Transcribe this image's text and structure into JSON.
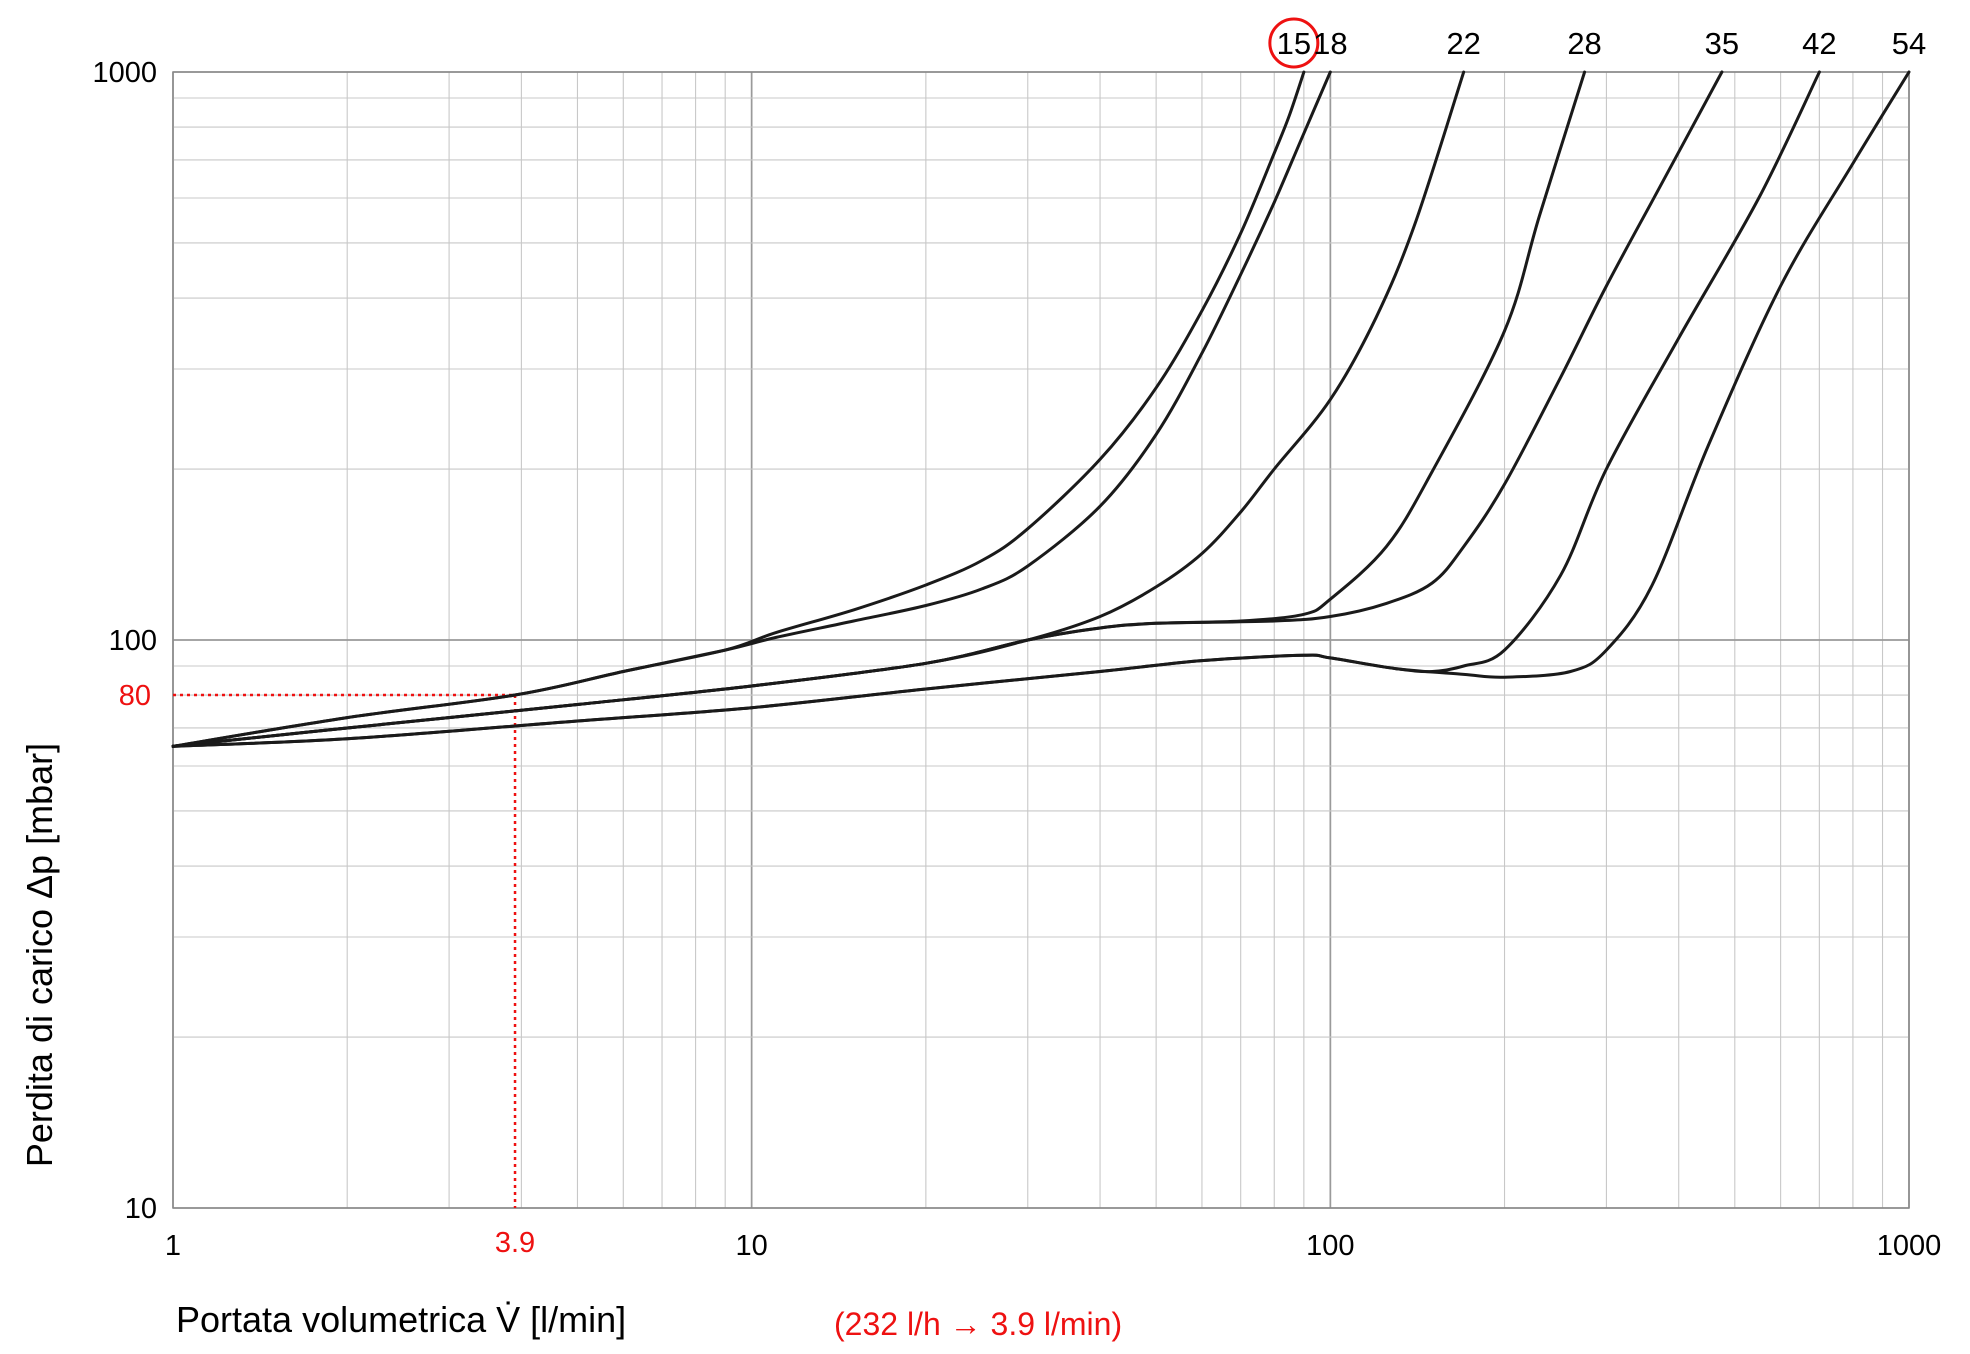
{
  "chart_data": {
    "type": "line",
    "x_scale": "log",
    "y_scale": "log",
    "xlim": [
      1,
      1000
    ],
    "ylim": [
      10,
      1000
    ],
    "grid": true,
    "xlabel": "Portata volumetrica V̇ [l/min]",
    "ylabel": "Perdita di carico Δp [mbar]",
    "x_ticks": [
      "1",
      "10",
      "100",
      "1000"
    ],
    "y_ticks": [
      "10",
      "100",
      "1000"
    ],
    "series": [
      {
        "name": "15",
        "highlighted": true,
        "points": [
          [
            1,
            65
          ],
          [
            2,
            73
          ],
          [
            3.9,
            80
          ],
          [
            6,
            88
          ],
          [
            9,
            96
          ],
          [
            11,
            103
          ],
          [
            15,
            113
          ],
          [
            20,
            125
          ],
          [
            25,
            138
          ],
          [
            30,
            157
          ],
          [
            40,
            208
          ],
          [
            50,
            278
          ],
          [
            60,
            380
          ],
          [
            70,
            520
          ],
          [
            80,
            720
          ],
          [
            85,
            840
          ],
          [
            90,
            1000
          ]
        ]
      },
      {
        "name": "18",
        "points": [
          [
            1,
            65
          ],
          [
            2,
            73
          ],
          [
            3.9,
            80
          ],
          [
            6,
            88
          ],
          [
            9,
            96
          ],
          [
            11,
            101
          ],
          [
            15,
            108
          ],
          [
            20,
            115
          ],
          [
            25,
            123
          ],
          [
            30,
            135
          ],
          [
            40,
            172
          ],
          [
            50,
            230
          ],
          [
            60,
            320
          ],
          [
            70,
            440
          ],
          [
            80,
            590
          ],
          [
            90,
            780
          ],
          [
            100,
            1000
          ]
        ]
      },
      {
        "name": "22",
        "points": [
          [
            1,
            65
          ],
          [
            2,
            70
          ],
          [
            5,
            77
          ],
          [
            10,
            83
          ],
          [
            20,
            91
          ],
          [
            30,
            100
          ],
          [
            40,
            110
          ],
          [
            50,
            124
          ],
          [
            60,
            142
          ],
          [
            70,
            168
          ],
          [
            80,
            200
          ],
          [
            100,
            265
          ],
          [
            120,
            370
          ],
          [
            140,
            540
          ],
          [
            170,
            1000
          ]
        ]
      },
      {
        "name": "28",
        "points": [
          [
            1,
            65
          ],
          [
            2,
            70
          ],
          [
            5,
            77
          ],
          [
            10,
            83
          ],
          [
            20,
            91
          ],
          [
            30,
            100
          ],
          [
            40,
            105
          ],
          [
            50,
            107
          ],
          [
            70,
            108
          ],
          [
            90,
            111
          ],
          [
            100,
            118
          ],
          [
            125,
            146
          ],
          [
            150,
            198
          ],
          [
            200,
            350
          ],
          [
            230,
            560
          ],
          [
            275,
            1000
          ]
        ]
      },
      {
        "name": "35",
        "points": [
          [
            1,
            65
          ],
          [
            2,
            70
          ],
          [
            5,
            77
          ],
          [
            10,
            83
          ],
          [
            20,
            91
          ],
          [
            30,
            100
          ],
          [
            40,
            105
          ],
          [
            50,
            107
          ],
          [
            80,
            108
          ],
          [
            100,
            110
          ],
          [
            125,
            116
          ],
          [
            150,
            126
          ],
          [
            170,
            146
          ],
          [
            200,
            188
          ],
          [
            250,
            290
          ],
          [
            300,
            420
          ],
          [
            375,
            640
          ],
          [
            475,
            1000
          ]
        ]
      },
      {
        "name": "42",
        "points": [
          [
            1,
            65
          ],
          [
            2,
            67
          ],
          [
            5,
            72
          ],
          [
            10,
            76
          ],
          [
            20,
            82
          ],
          [
            40,
            88
          ],
          [
            60,
            92
          ],
          [
            90,
            94
          ],
          [
            100,
            93
          ],
          [
            130,
            89
          ],
          [
            150,
            88
          ],
          [
            170,
            90
          ],
          [
            200,
            96
          ],
          [
            250,
            130
          ],
          [
            300,
            200
          ],
          [
            400,
            340
          ],
          [
            550,
            600
          ],
          [
            700,
            1000
          ]
        ]
      },
      {
        "name": "54",
        "points": [
          [
            1,
            65
          ],
          [
            2,
            67
          ],
          [
            5,
            72
          ],
          [
            10,
            76
          ],
          [
            20,
            82
          ],
          [
            40,
            88
          ],
          [
            60,
            92
          ],
          [
            90,
            94
          ],
          [
            100,
            93
          ],
          [
            130,
            89
          ],
          [
            170,
            87
          ],
          [
            200,
            86
          ],
          [
            260,
            88
          ],
          [
            300,
            96
          ],
          [
            360,
            125
          ],
          [
            450,
            220
          ],
          [
            600,
            420
          ],
          [
            800,
            690
          ],
          [
            1000,
            1000
          ]
        ]
      }
    ],
    "annotations": {
      "x_marker": {
        "value": 3.9,
        "label": "3.9"
      },
      "y_marker": {
        "value": 80,
        "label": "80"
      },
      "note": "(232 l/h → 3.9 l/min)",
      "color": "#ee1111"
    }
  }
}
